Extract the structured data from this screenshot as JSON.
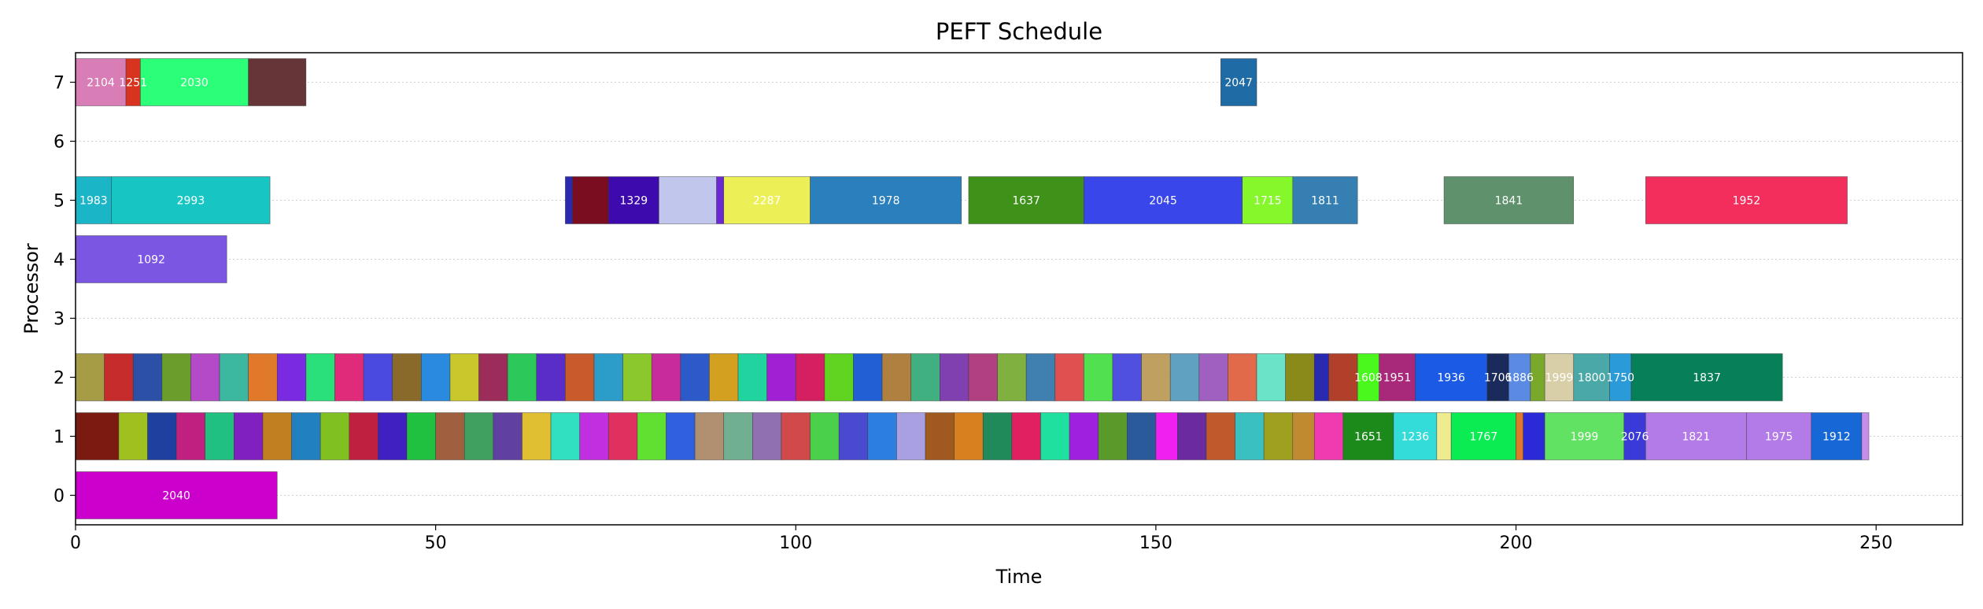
{
  "chart_data": {
    "type": "gantt",
    "title": "PEFT Schedule",
    "xlabel": "Time",
    "ylabel": "Processor",
    "xlim": [
      0,
      262
    ],
    "ylim": [
      -0.5,
      7.5
    ],
    "xticks": [
      0,
      50,
      100,
      150,
      200,
      250
    ],
    "yticks": [
      0,
      1,
      2,
      3,
      4,
      5,
      6,
      7
    ],
    "grid": "horizontal dotted",
    "tasks": [
      {
        "processor": 7,
        "start": 0,
        "end": 7,
        "label": "2104",
        "color": "#d87db5"
      },
      {
        "processor": 7,
        "start": 7,
        "end": 9,
        "label": "1251",
        "color": "#d8331e"
      },
      {
        "processor": 7,
        "start": 9,
        "end": 24,
        "label": "2030",
        "color": "#2bff78"
      },
      {
        "processor": 7,
        "start": 24,
        "end": 32,
        "label": "",
        "color": "#663538"
      },
      {
        "processor": 7,
        "start": 159,
        "end": 164,
        "label": "2047",
        "color": "#1f6ba6"
      },
      {
        "processor": 5,
        "start": 0,
        "end": 5,
        "label": "1983",
        "color": "#1ab6c8"
      },
      {
        "processor": 5,
        "start": 5,
        "end": 27,
        "label": "2993",
        "color": "#17c6c3"
      },
      {
        "processor": 5,
        "start": 68,
        "end": 69,
        "label": "",
        "color": "#2a2ab0"
      },
      {
        "processor": 5,
        "start": 69,
        "end": 74,
        "label": "",
        "color": "#7b0d21"
      },
      {
        "processor": 5,
        "start": 74,
        "end": 81,
        "label": "1329",
        "color": "#3d0bad"
      },
      {
        "processor": 5,
        "start": 81,
        "end": 89,
        "label": "",
        "color": "#c1c7ec"
      },
      {
        "processor": 5,
        "start": 89,
        "end": 90,
        "label": "",
        "color": "#6b29d6"
      },
      {
        "processor": 5,
        "start": 90,
        "end": 102,
        "label": "2287",
        "color": "#ecf056"
      },
      {
        "processor": 5,
        "start": 102,
        "end": 123,
        "label": "1978",
        "color": "#2b7fbc"
      },
      {
        "processor": 5,
        "start": 124,
        "end": 140,
        "label": "1637",
        "color": "#3e9119"
      },
      {
        "processor": 5,
        "start": 140,
        "end": 162,
        "label": "2045",
        "color": "#3846ea"
      },
      {
        "processor": 5,
        "start": 162,
        "end": 169,
        "label": "1715",
        "color": "#85f72a"
      },
      {
        "processor": 5,
        "start": 169,
        "end": 178,
        "label": "1811",
        "color": "#357fb3"
      },
      {
        "processor": 5,
        "start": 190,
        "end": 208,
        "label": "1841",
        "color": "#5f916d"
      },
      {
        "processor": 5,
        "start": 218,
        "end": 246,
        "label": "1952",
        "color": "#f32e5c"
      },
      {
        "processor": 4,
        "start": 0,
        "end": 21,
        "label": "1092",
        "color": "#7b56e3"
      },
      {
        "processor": 2,
        "start": 0,
        "end": 4,
        "label": "",
        "color": "#a59c45"
      },
      {
        "processor": 2,
        "start": 4,
        "end": 8,
        "label": "",
        "color": "#c62c2c"
      },
      {
        "processor": 2,
        "start": 8,
        "end": 12,
        "label": "",
        "color": "#2c50a6"
      },
      {
        "processor": 2,
        "start": 12,
        "end": 16,
        "label": "",
        "color": "#6a9d2c"
      },
      {
        "processor": 2,
        "start": 16,
        "end": 20,
        "label": "",
        "color": "#b44ac8"
      },
      {
        "processor": 2,
        "start": 20,
        "end": 24,
        "label": "",
        "color": "#3cb7a0"
      },
      {
        "processor": 2,
        "start": 24,
        "end": 28,
        "label": "",
        "color": "#e07a2a"
      },
      {
        "processor": 2,
        "start": 28,
        "end": 32,
        "label": "",
        "color": "#7a2ae0"
      },
      {
        "processor": 2,
        "start": 32,
        "end": 36,
        "label": "",
        "color": "#2ae07a"
      },
      {
        "processor": 2,
        "start": 36,
        "end": 40,
        "label": "",
        "color": "#e02a7a"
      },
      {
        "processor": 2,
        "start": 40,
        "end": 44,
        "label": "",
        "color": "#4a4ae0"
      },
      {
        "processor": 2,
        "start": 44,
        "end": 48,
        "label": "",
        "color": "#8a6a2a"
      },
      {
        "processor": 2,
        "start": 48,
        "end": 52,
        "label": "",
        "color": "#2a8ae0"
      },
      {
        "processor": 2,
        "start": 52,
        "end": 56,
        "label": "",
        "color": "#c8c82c"
      },
      {
        "processor": 2,
        "start": 56,
        "end": 60,
        "label": "",
        "color": "#9c2c5a"
      },
      {
        "processor": 2,
        "start": 60,
        "end": 64,
        "label": "",
        "color": "#2cc85a"
      },
      {
        "processor": 2,
        "start": 64,
        "end": 68,
        "label": "",
        "color": "#5a2cc8"
      },
      {
        "processor": 2,
        "start": 68,
        "end": 72,
        "label": "",
        "color": "#c85a2c"
      },
      {
        "processor": 2,
        "start": 72,
        "end": 76,
        "label": "",
        "color": "#2c9cc8"
      },
      {
        "processor": 2,
        "start": 76,
        "end": 80,
        "label": "",
        "color": "#8ac82c"
      },
      {
        "processor": 2,
        "start": 80,
        "end": 84,
        "label": "",
        "color": "#c82c9c"
      },
      {
        "processor": 2,
        "start": 84,
        "end": 88,
        "label": "",
        "color": "#2c5ac8"
      },
      {
        "processor": 2,
        "start": 88,
        "end": 92,
        "label": "",
        "color": "#d4a020"
      },
      {
        "processor": 2,
        "start": 92,
        "end": 96,
        "label": "",
        "color": "#20d4a0"
      },
      {
        "processor": 2,
        "start": 96,
        "end": 100,
        "label": "",
        "color": "#a020d4"
      },
      {
        "processor": 2,
        "start": 100,
        "end": 104,
        "label": "",
        "color": "#d42060"
      },
      {
        "processor": 2,
        "start": 104,
        "end": 108,
        "label": "",
        "color": "#60d420"
      },
      {
        "processor": 2,
        "start": 108,
        "end": 112,
        "label": "",
        "color": "#2060d4"
      },
      {
        "processor": 2,
        "start": 112,
        "end": 116,
        "label": "",
        "color": "#b08040"
      },
      {
        "processor": 2,
        "start": 116,
        "end": 120,
        "label": "",
        "color": "#40b080"
      },
      {
        "processor": 2,
        "start": 120,
        "end": 124,
        "label": "",
        "color": "#8040b0"
      },
      {
        "processor": 2,
        "start": 124,
        "end": 128,
        "label": "",
        "color": "#b04080"
      },
      {
        "processor": 2,
        "start": 128,
        "end": 132,
        "label": "",
        "color": "#80b040"
      },
      {
        "processor": 2,
        "start": 132,
        "end": 136,
        "label": "",
        "color": "#4080b0"
      },
      {
        "processor": 2,
        "start": 136,
        "end": 140,
        "label": "",
        "color": "#e05050"
      },
      {
        "processor": 2,
        "start": 140,
        "end": 144,
        "label": "",
        "color": "#50e050"
      },
      {
        "processor": 2,
        "start": 144,
        "end": 148,
        "label": "",
        "color": "#5050e0"
      },
      {
        "processor": 2,
        "start": 148,
        "end": 152,
        "label": "",
        "color": "#c0a060"
      },
      {
        "processor": 2,
        "start": 152,
        "end": 156,
        "label": "",
        "color": "#60a0c0"
      },
      {
        "processor": 2,
        "start": 156,
        "end": 160,
        "label": "",
        "color": "#a060c0"
      },
      {
        "processor": 2,
        "start": 160,
        "end": 164,
        "label": "",
        "color": "#e06a4a"
      },
      {
        "processor": 2,
        "start": 164,
        "end": 168,
        "label": "",
        "color": "#6ae4c8"
      },
      {
        "processor": 2,
        "start": 168,
        "end": 172,
        "label": "",
        "color": "#8a8a1a"
      },
      {
        "processor": 2,
        "start": 172,
        "end": 174,
        "label": "",
        "color": "#2a2ab0"
      },
      {
        "processor": 2,
        "start": 174,
        "end": 178,
        "label": "",
        "color": "#b0402a"
      },
      {
        "processor": 2,
        "start": 178,
        "end": 181,
        "label": "1608",
        "color": "#4af81e"
      },
      {
        "processor": 2,
        "start": 181,
        "end": 186,
        "label": "1951",
        "color": "#a8287a"
      },
      {
        "processor": 2,
        "start": 186,
        "end": 196,
        "label": "1936",
        "color": "#1a5ae4"
      },
      {
        "processor": 2,
        "start": 196,
        "end": 199,
        "label": "1706",
        "color": "#1a2a5a"
      },
      {
        "processor": 2,
        "start": 199,
        "end": 202,
        "label": "1886",
        "color": "#5a8ae4"
      },
      {
        "processor": 2,
        "start": 202,
        "end": 204,
        "label": "",
        "color": "#7aa82a"
      },
      {
        "processor": 2,
        "start": 204,
        "end": 208,
        "label": "1999",
        "color": "#d8cfa8"
      },
      {
        "processor": 2,
        "start": 208,
        "end": 213,
        "label": "1800",
        "color": "#4aa8a8"
      },
      {
        "processor": 2,
        "start": 213,
        "end": 216,
        "label": "1750",
        "color": "#2a9ad8"
      },
      {
        "processor": 2,
        "start": 216,
        "end": 237,
        "label": "1837",
        "color": "#078059"
      },
      {
        "processor": 1,
        "start": 0,
        "end": 6,
        "label": "",
        "color": "#7b1a10"
      },
      {
        "processor": 1,
        "start": 6,
        "end": 10,
        "label": "",
        "color": "#a0c020"
      },
      {
        "processor": 1,
        "start": 10,
        "end": 14,
        "label": "",
        "color": "#2040a0"
      },
      {
        "processor": 1,
        "start": 14,
        "end": 18,
        "label": "",
        "color": "#c02080"
      },
      {
        "processor": 1,
        "start": 18,
        "end": 22,
        "label": "",
        "color": "#20c080"
      },
      {
        "processor": 1,
        "start": 22,
        "end": 26,
        "label": "",
        "color": "#8020c0"
      },
      {
        "processor": 1,
        "start": 26,
        "end": 30,
        "label": "",
        "color": "#c08020"
      },
      {
        "processor": 1,
        "start": 30,
        "end": 34,
        "label": "",
        "color": "#2080c0"
      },
      {
        "processor": 1,
        "start": 34,
        "end": 38,
        "label": "",
        "color": "#80c020"
      },
      {
        "processor": 1,
        "start": 38,
        "end": 42,
        "label": "",
        "color": "#c02040"
      },
      {
        "processor": 1,
        "start": 42,
        "end": 46,
        "label": "",
        "color": "#4020c0"
      },
      {
        "processor": 1,
        "start": 46,
        "end": 50,
        "label": "",
        "color": "#20c040"
      },
      {
        "processor": 1,
        "start": 50,
        "end": 54,
        "label": "",
        "color": "#a06040"
      },
      {
        "processor": 1,
        "start": 54,
        "end": 58,
        "label": "",
        "color": "#40a060"
      },
      {
        "processor": 1,
        "start": 58,
        "end": 62,
        "label": "",
        "color": "#6040a0"
      },
      {
        "processor": 1,
        "start": 62,
        "end": 66,
        "label": "",
        "color": "#e0c030"
      },
      {
        "processor": 1,
        "start": 66,
        "end": 70,
        "label": "",
        "color": "#30e0c0"
      },
      {
        "processor": 1,
        "start": 70,
        "end": 74,
        "label": "",
        "color": "#c030e0"
      },
      {
        "processor": 1,
        "start": 74,
        "end": 78,
        "label": "",
        "color": "#e03060"
      },
      {
        "processor": 1,
        "start": 78,
        "end": 82,
        "label": "",
        "color": "#60e030"
      },
      {
        "processor": 1,
        "start": 82,
        "end": 86,
        "label": "",
        "color": "#3060e0"
      },
      {
        "processor": 1,
        "start": 86,
        "end": 90,
        "label": "",
        "color": "#b09070"
      },
      {
        "processor": 1,
        "start": 90,
        "end": 94,
        "label": "",
        "color": "#70b090"
      },
      {
        "processor": 1,
        "start": 94,
        "end": 98,
        "label": "",
        "color": "#9070b0"
      },
      {
        "processor": 1,
        "start": 98,
        "end": 102,
        "label": "",
        "color": "#d04a4a"
      },
      {
        "processor": 1,
        "start": 102,
        "end": 106,
        "label": "",
        "color": "#4ad04a"
      },
      {
        "processor": 1,
        "start": 106,
        "end": 110,
        "label": "",
        "color": "#4a4ad0"
      },
      {
        "processor": 1,
        "start": 110,
        "end": 114,
        "label": "",
        "color": "#2b7fe0"
      },
      {
        "processor": 1,
        "start": 114,
        "end": 118,
        "label": "",
        "color": "#a8a0e0"
      },
      {
        "processor": 1,
        "start": 118,
        "end": 122,
        "label": "",
        "color": "#a05a20"
      },
      {
        "processor": 1,
        "start": 122,
        "end": 126,
        "label": "",
        "color": "#d88020"
      },
      {
        "processor": 1,
        "start": 126,
        "end": 130,
        "label": "",
        "color": "#208a5a"
      },
      {
        "processor": 1,
        "start": 130,
        "end": 134,
        "label": "",
        "color": "#e02060"
      },
      {
        "processor": 1,
        "start": 134,
        "end": 138,
        "label": "",
        "color": "#20e0a0"
      },
      {
        "processor": 1,
        "start": 138,
        "end": 142,
        "label": "",
        "color": "#a020e0"
      },
      {
        "processor": 1,
        "start": 142,
        "end": 146,
        "label": "",
        "color": "#5a9a2a"
      },
      {
        "processor": 1,
        "start": 146,
        "end": 150,
        "label": "",
        "color": "#2a5a9a"
      },
      {
        "processor": 1,
        "start": 150,
        "end": 153,
        "label": "",
        "color": "#f020f0"
      },
      {
        "processor": 1,
        "start": 153,
        "end": 157,
        "label": "",
        "color": "#6a2aa0"
      },
      {
        "processor": 1,
        "start": 157,
        "end": 161,
        "label": "",
        "color": "#c05a2a"
      },
      {
        "processor": 1,
        "start": 161,
        "end": 165,
        "label": "",
        "color": "#3ac0c0"
      },
      {
        "processor": 1,
        "start": 165,
        "end": 169,
        "label": "",
        "color": "#a0a020"
      },
      {
        "processor": 1,
        "start": 169,
        "end": 172,
        "label": "",
        "color": "#c08a30"
      },
      {
        "processor": 1,
        "start": 172,
        "end": 176,
        "label": "",
        "color": "#f03ab0"
      },
      {
        "processor": 1,
        "start": 176,
        "end": 183,
        "label": "1651",
        "color": "#1b8a1b"
      },
      {
        "processor": 1,
        "start": 183,
        "end": 189,
        "label": "1236",
        "color": "#33dcd9"
      },
      {
        "processor": 1,
        "start": 189,
        "end": 191,
        "label": "",
        "color": "#efeb8f"
      },
      {
        "processor": 1,
        "start": 191,
        "end": 200,
        "label": "1767",
        "color": "#0aec52"
      },
      {
        "processor": 1,
        "start": 200,
        "end": 201,
        "label": "",
        "color": "#e07a2a"
      },
      {
        "processor": 1,
        "start": 201,
        "end": 204,
        "label": "",
        "color": "#2a2ad8"
      },
      {
        "processor": 1,
        "start": 204,
        "end": 215,
        "label": "1999",
        "color": "#62e262"
      },
      {
        "processor": 1,
        "start": 215,
        "end": 218,
        "label": "2076",
        "color": "#3a3ad8"
      },
      {
        "processor": 1,
        "start": 218,
        "end": 232,
        "label": "1821",
        "color": "#b37be7"
      },
      {
        "processor": 1,
        "start": 232,
        "end": 241,
        "label": "1975",
        "color": "#b37be7"
      },
      {
        "processor": 1,
        "start": 241,
        "end": 248,
        "label": "1912",
        "color": "#1568d5"
      },
      {
        "processor": 1,
        "start": 248,
        "end": 249,
        "label": "",
        "color": "#c58ee8"
      },
      {
        "processor": 0,
        "start": 0,
        "end": 28,
        "label": "2040",
        "color": "#cc00cc"
      }
    ]
  }
}
